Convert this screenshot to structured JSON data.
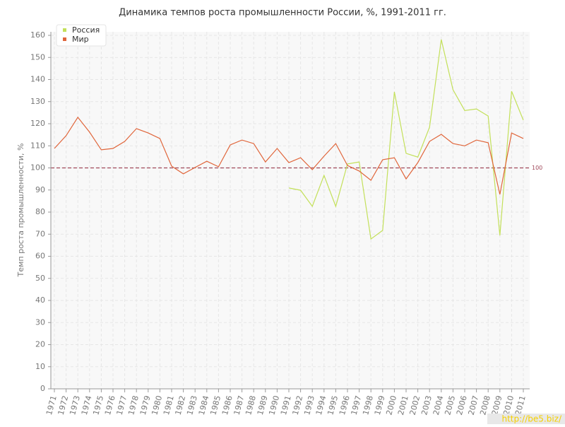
{
  "chart_data": {
    "type": "line",
    "title": "Динамика темпов роста промышленности России, %, 1991-2011 гг.",
    "y_label": "Темп роста промышленности, %",
    "categories": [
      "1971",
      "1972",
      "1973",
      "1974",
      "1975",
      "1976",
      "1977",
      "1978",
      "1979",
      "1980",
      "1981",
      "1982",
      "1983",
      "1984",
      "1985",
      "1986",
      "1987",
      "1988",
      "1989",
      "1990",
      "1991",
      "1992",
      "1993",
      "1994",
      "1995",
      "1996",
      "1997",
      "1998",
      "1999",
      "2000",
      "2001",
      "2002",
      "2003",
      "2004",
      "2005",
      "2006",
      "2007",
      "2008",
      "2009",
      "2010",
      "2011"
    ],
    "series": [
      {
        "name": "Россия",
        "color": "#c3e05a",
        "values": [
          null,
          null,
          null,
          null,
          null,
          null,
          null,
          null,
          null,
          null,
          null,
          null,
          null,
          null,
          null,
          null,
          null,
          null,
          null,
          null,
          90.9,
          89.9,
          82.6,
          96.6,
          82.6,
          101.8,
          102.7,
          67.8,
          71.7,
          134.4,
          106.6,
          104.9,
          118.4,
          158.1,
          135.4,
          126,
          126.7,
          123.5,
          69.4,
          134.7,
          121.6
        ]
      },
      {
        "name": "Мир",
        "color": "#e0653a",
        "values": [
          108.8,
          114.6,
          122.9,
          116.2,
          108.2,
          108.8,
          112,
          117.8,
          115.8,
          113.3,
          100.8,
          97.3,
          100.2,
          103,
          100.5,
          110.4,
          112.6,
          111,
          102.7,
          108.8,
          102.4,
          104.6,
          99.2,
          105.3,
          111,
          101.1,
          98.6,
          94.4,
          103.7,
          104.6,
          95,
          102.4,
          112,
          115.2,
          111,
          110,
          112.6,
          111.4,
          88,
          115.8,
          113.3
        ]
      }
    ],
    "ylim": [
      0,
      160
    ],
    "yticks": [
      0,
      10,
      20,
      30,
      40,
      50,
      60,
      70,
      80,
      90,
      100,
      110,
      120,
      130,
      140,
      150,
      160
    ],
    "grid": true,
    "legend": "top-left",
    "reference_line": 100,
    "reference_color": "#a0485a"
  },
  "watermark": "http://be5.biz/"
}
